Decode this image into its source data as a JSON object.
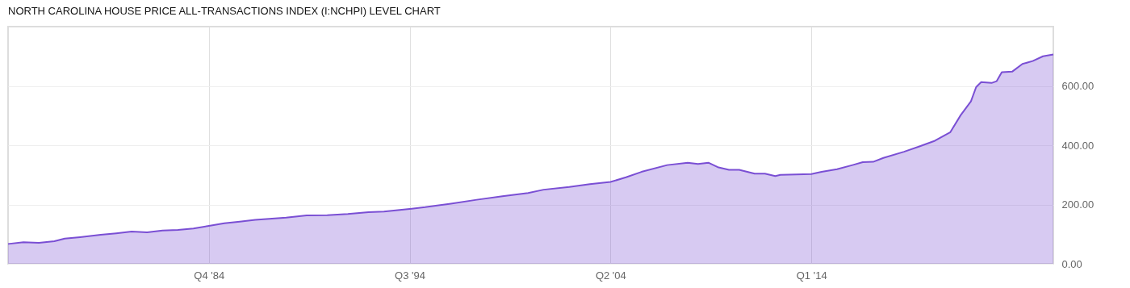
{
  "chart_data": {
    "type": "area",
    "title": "NORTH CAROLINA HOUSE PRICE ALL-TRANSACTIONS INDEX (I:NCHPI) LEVEL CHART",
    "x": [
      "1975-01",
      "1975-10",
      "1976-07",
      "1977-04",
      "1977-10",
      "1978-07",
      "1979-07",
      "1980-04",
      "1981-01",
      "1981-10",
      "1982-07",
      "1983-04",
      "1984-01",
      "1984-10",
      "1985-07",
      "1986-04",
      "1987-01",
      "1988-07",
      "1989-07",
      "1990-07",
      "1991-07",
      "1992-07",
      "1993-04",
      "1994-07",
      "1995-04",
      "1996-07",
      "1997-10",
      "1999-01",
      "2000-04",
      "2001-01",
      "2002-04",
      "2003-04",
      "2004-04",
      "2005-01",
      "2005-10",
      "2007-01",
      "2008-01",
      "2008-07",
      "2009-01",
      "2009-07",
      "2010-01",
      "2010-07",
      "2011-04",
      "2011-10",
      "2012-04",
      "2012-07",
      "2014-01",
      "2014-07",
      "2015-04",
      "2016-01",
      "2016-07",
      "2017-01",
      "2017-07",
      "2018-07",
      "2019-04",
      "2020-01",
      "2020-10",
      "2021-04",
      "2021-10",
      "2022-01",
      "2022-04",
      "2022-10",
      "2023-01",
      "2023-04",
      "2023-10",
      "2024-04",
      "2024-10",
      "2025-04",
      "2025-10"
    ],
    "series": [
      {
        "color": "#7a4fd4",
        "values": [
          67,
          73,
          71,
          76,
          85,
          90,
          98,
          103,
          109,
          106,
          112,
          114,
          119,
          128,
          137,
          142,
          148,
          156,
          163,
          164,
          168,
          174,
          176,
          185,
          191,
          203,
          216,
          228,
          239,
          250,
          259,
          269,
          276,
          292,
          310,
          333,
          341,
          337,
          341,
          325,
          317,
          317,
          304,
          304,
          296,
          300,
          303,
          310,
          319,
          333,
          343,
          344,
          357,
          378,
          396,
          415,
          444,
          501,
          548,
          596,
          613,
          610,
          616,
          646,
          648,
          674,
          684,
          700,
          706
        ]
      }
    ],
    "xlim": [
      "1975-01",
      "2025-10"
    ],
    "xticks": [
      {
        "value": "1984-10",
        "label": "Q4 '84"
      },
      {
        "value": "1994-07",
        "label": "Q3 '94"
      },
      {
        "value": "2004-04",
        "label": "Q2 '04"
      },
      {
        "value": "2014-01",
        "label": "Q1 '14"
      }
    ],
    "ylim": [
      0,
      800
    ],
    "yticks": [
      {
        "value": 0,
        "label": "0.00"
      },
      {
        "value": 200,
        "label": "200.00"
      },
      {
        "value": 400,
        "label": "400.00"
      },
      {
        "value": 600,
        "label": "600.00"
      }
    ],
    "grid": true
  }
}
